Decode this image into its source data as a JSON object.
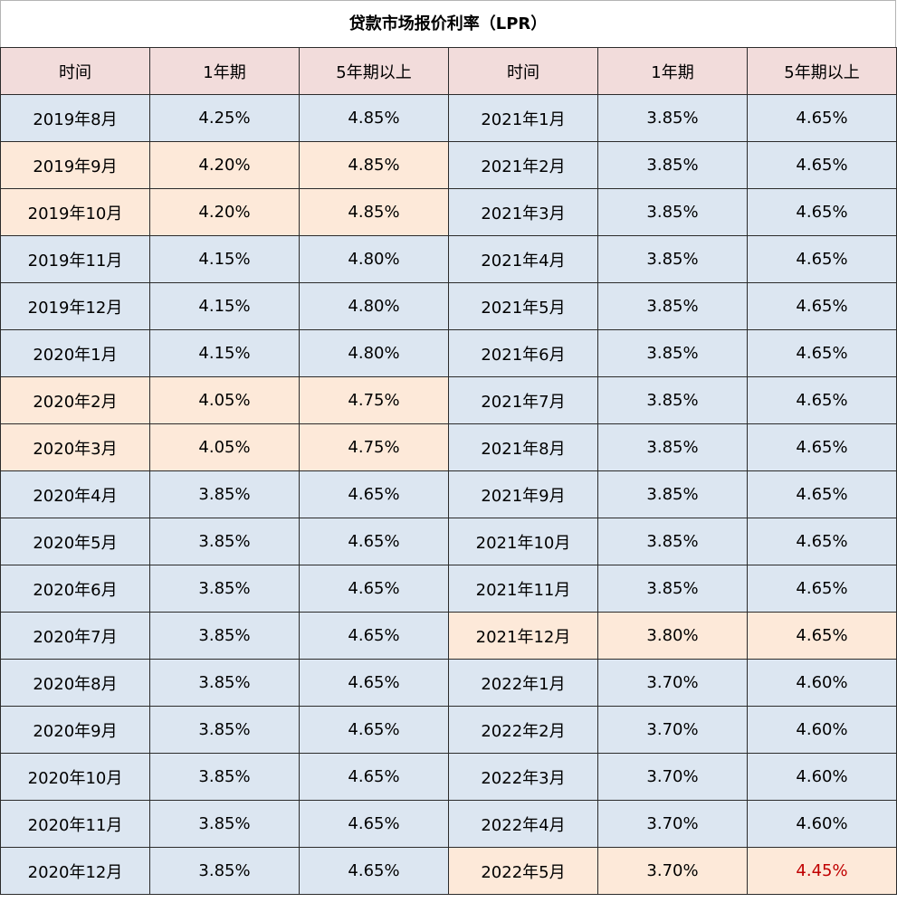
{
  "title": "贷款市场报价利率（LPR）",
  "headers": [
    "时间",
    "1年期",
    "5年期以上",
    "时间",
    "1年期",
    "5年期以上"
  ],
  "colors": {
    "header_bg": "#f2dcdb",
    "normal_bg": "#dce6f1",
    "changed_bg": "#fde9d9",
    "emphasis_text": "#c00000"
  },
  "left_rows": [
    {
      "date": "2019年8月",
      "y1": "4.25%",
      "y5": "4.85%",
      "highlight": false
    },
    {
      "date": "2019年9月",
      "y1": "4.20%",
      "y5": "4.85%",
      "highlight": true
    },
    {
      "date": "2019年10月",
      "y1": "4.20%",
      "y5": "4.85%",
      "highlight": true
    },
    {
      "date": "2019年11月",
      "y1": "4.15%",
      "y5": "4.80%",
      "highlight": false
    },
    {
      "date": "2019年12月",
      "y1": "4.15%",
      "y5": "4.80%",
      "highlight": false
    },
    {
      "date": "2020年1月",
      "y1": "4.15%",
      "y5": "4.80%",
      "highlight": false
    },
    {
      "date": "2020年2月",
      "y1": "4.05%",
      "y5": "4.75%",
      "highlight": true
    },
    {
      "date": "2020年3月",
      "y1": "4.05%",
      "y5": "4.75%",
      "highlight": true
    },
    {
      "date": "2020年4月",
      "y1": "3.85%",
      "y5": "4.65%",
      "highlight": false
    },
    {
      "date": "2020年5月",
      "y1": "3.85%",
      "y5": "4.65%",
      "highlight": false
    },
    {
      "date": "2020年6月",
      "y1": "3.85%",
      "y5": "4.65%",
      "highlight": false
    },
    {
      "date": "2020年7月",
      "y1": "3.85%",
      "y5": "4.65%",
      "highlight": false
    },
    {
      "date": "2020年8月",
      "y1": "3.85%",
      "y5": "4.65%",
      "highlight": false
    },
    {
      "date": "2020年9月",
      "y1": "3.85%",
      "y5": "4.65%",
      "highlight": false
    },
    {
      "date": "2020年10月",
      "y1": "3.85%",
      "y5": "4.65%",
      "highlight": false
    },
    {
      "date": "2020年11月",
      "y1": "3.85%",
      "y5": "4.65%",
      "highlight": false
    },
    {
      "date": "2020年12月",
      "y1": "3.85%",
      "y5": "4.65%",
      "highlight": false
    }
  ],
  "right_rows": [
    {
      "date": "2021年1月",
      "y1": "3.85%",
      "y5": "4.65%",
      "highlight": false
    },
    {
      "date": "2021年2月",
      "y1": "3.85%",
      "y5": "4.65%",
      "highlight": false
    },
    {
      "date": "2021年3月",
      "y1": "3.85%",
      "y5": "4.65%",
      "highlight": false
    },
    {
      "date": "2021年4月",
      "y1": "3.85%",
      "y5": "4.65%",
      "highlight": false
    },
    {
      "date": "2021年5月",
      "y1": "3.85%",
      "y5": "4.65%",
      "highlight": false
    },
    {
      "date": "2021年6月",
      "y1": "3.85%",
      "y5": "4.65%",
      "highlight": false
    },
    {
      "date": "2021年7月",
      "y1": "3.85%",
      "y5": "4.65%",
      "highlight": false
    },
    {
      "date": "2021年8月",
      "y1": "3.85%",
      "y5": "4.65%",
      "highlight": false
    },
    {
      "date": "2021年9月",
      "y1": "3.85%",
      "y5": "4.65%",
      "highlight": false
    },
    {
      "date": "2021年10月",
      "y1": "3.85%",
      "y5": "4.65%",
      "highlight": false
    },
    {
      "date": "2021年11月",
      "y1": "3.85%",
      "y5": "4.65%",
      "highlight": false
    },
    {
      "date": "2021年12月",
      "y1": "3.80%",
      "y5": "4.65%",
      "highlight": true
    },
    {
      "date": "2022年1月",
      "y1": "3.70%",
      "y5": "4.60%",
      "highlight": false
    },
    {
      "date": "2022年2月",
      "y1": "3.70%",
      "y5": "4.60%",
      "highlight": false
    },
    {
      "date": "2022年3月",
      "y1": "3.70%",
      "y5": "4.60%",
      "highlight": false
    },
    {
      "date": "2022年4月",
      "y1": "3.70%",
      "y5": "4.60%",
      "highlight": false
    },
    {
      "date": "2022年5月",
      "y1": "3.70%",
      "y5": "4.45%",
      "highlight": true,
      "y5_emphasis": true
    }
  ]
}
